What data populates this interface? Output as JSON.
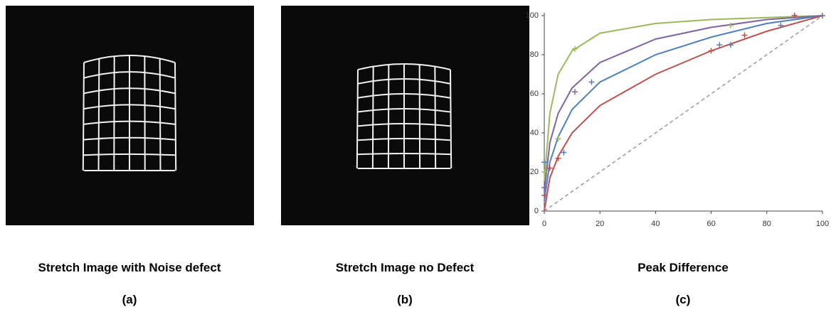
{
  "panels": [
    {
      "caption": "Stretch Image with Noise defect",
      "label": "(a)"
    },
    {
      "caption": "Stretch Image no Defect",
      "label": "(b)"
    },
    {
      "caption": "Peak Difference",
      "label": "(c)"
    }
  ],
  "chart_data": {
    "type": "line",
    "xlim": [
      0,
      100
    ],
    "ylim": [
      0,
      100
    ],
    "xticks": [
      0,
      20,
      40,
      60,
      80,
      100
    ],
    "yticks": [
      0,
      20,
      40,
      60,
      80,
      100
    ],
    "series": [
      {
        "color": "#9bbb59",
        "x": [
          0,
          2,
          5,
          10,
          20,
          40,
          60,
          80,
          100
        ],
        "values": [
          15,
          50,
          70,
          82,
          91,
          96,
          98,
          99,
          100
        ]
      },
      {
        "color": "#8064a2",
        "x": [
          0,
          2,
          5,
          10,
          20,
          40,
          60,
          80,
          100
        ],
        "values": [
          10,
          35,
          50,
          63,
          76,
          88,
          94,
          98,
          100
        ]
      },
      {
        "color": "#4f81bd",
        "x": [
          0,
          2,
          5,
          10,
          20,
          40,
          60,
          80,
          100
        ],
        "values": [
          5,
          25,
          38,
          52,
          66,
          80,
          89,
          96,
          100
        ]
      },
      {
        "color": "#c0504d",
        "x": [
          0,
          2,
          5,
          10,
          20,
          40,
          60,
          80,
          100
        ],
        "values": [
          0,
          17,
          28,
          40,
          54,
          70,
          82,
          92,
          100
        ]
      }
    ],
    "points": [
      {
        "color": "#9bbb59",
        "x": [
          0,
          5,
          11,
          67,
          90
        ],
        "values": [
          20,
          37,
          83,
          95,
          100
        ]
      },
      {
        "color": "#8064a2",
        "x": [
          0,
          11,
          100
        ],
        "values": [
          12,
          61,
          100
        ]
      },
      {
        "color": "#4f81bd",
        "x": [
          0,
          7,
          17,
          63,
          67,
          85
        ],
        "values": [
          25,
          30,
          66,
          85,
          85,
          95
        ]
      },
      {
        "color": "#c0504d",
        "x": [
          0,
          2,
          5,
          60,
          72,
          90
        ],
        "values": [
          8,
          22,
          27,
          82,
          90,
          100
        ]
      }
    ]
  }
}
